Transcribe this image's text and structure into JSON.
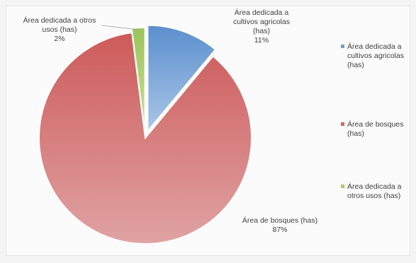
{
  "chart_data": {
    "type": "pie",
    "slices": [
      {
        "name": "Área dedicada a cultivos agricolas (has)",
        "value": 11,
        "color": "#6f9ed3",
        "label_lines": [
          "Área dedicada a",
          "cultivos agricolas",
          "(has)",
          "11%"
        ]
      },
      {
        "name": "Área de bosques (has)",
        "value": 87,
        "color": "#d46666",
        "label_lines": [
          "Área de bosques (has)",
          "87%"
        ]
      },
      {
        "name": "Área dedicada a otros usos (has)",
        "value": 2,
        "color": "#a8cc6a",
        "label_lines": [
          "Área dedicada a otros",
          "usos (has)",
          "2%"
        ]
      }
    ],
    "legend": {
      "placement": "right",
      "entries": [
        {
          "lines": [
            "Área dedicada a",
            "cultivos agricolas",
            "(has)"
          ],
          "color": "#6f9ed3"
        },
        {
          "lines": [
            "Área de bosques",
            "(has)"
          ],
          "color": "#d46666"
        },
        {
          "lines": [
            "Área dedicada a",
            "otros usos (has)"
          ],
          "color": "#a8cc6a"
        }
      ]
    }
  }
}
